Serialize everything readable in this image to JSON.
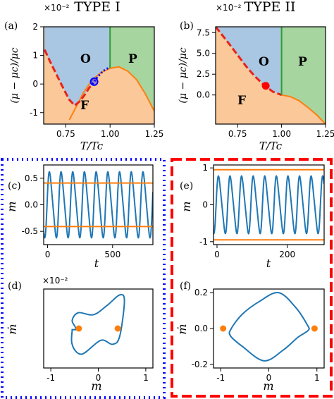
{
  "titles": {
    "left": "TYPE I",
    "right": "TYPE II"
  },
  "panel_labels": {
    "a": "(a)",
    "b": "(b)",
    "c": "(c)",
    "d": "(d)",
    "e": "(e)",
    "f": "(f)"
  },
  "multipliers": {
    "a": "×10⁻²",
    "b": "×10⁻²",
    "d": "×10⁻²"
  },
  "region_labels": {
    "O": "O",
    "P": "P",
    "F": "F"
  },
  "axis_labels": {
    "phase_y": "(μ − μc)/μc",
    "phase_x": "T/Tc",
    "time_x": "t",
    "time_y": "m",
    "phase_space_x": "m",
    "phase_space_y": "ṁ"
  },
  "colors": {
    "O_region": "#a9c6e2",
    "P_region": "#a6d5a0",
    "F_region": "#fbc89a",
    "trajectory": "#1f77b4",
    "fixed": "#ff7f0e",
    "boundary_P": "#2ca02c",
    "typeI": "#0000ff",
    "typeII": "#ff0000"
  },
  "chart_data": [
    {
      "id": "a",
      "type": "line",
      "xlim": [
        0.625,
        1.25
      ],
      "ylim": [
        -0.014,
        0.02
      ],
      "xticks": [
        "0.75",
        "1.00",
        "1.25"
      ],
      "yticks": [
        "-1",
        "0",
        "1",
        "2"
      ],
      "ytick_values": [
        -0.01,
        0,
        0.01,
        0.02
      ],
      "xtick_values": [
        0.75,
        1.0,
        1.25
      ],
      "boundary_OF": {
        "x": [
          0.63,
          0.66,
          0.7,
          0.74,
          0.77,
          0.8,
          0.83,
          0.86,
          0.88,
          0.9,
          0.93,
          0.96,
          1.0
        ],
        "y": [
          0.012,
          0.008,
          0.003,
          -0.002,
          -0.0055,
          -0.0075,
          -0.006,
          -0.0035,
          -0.0015,
          0.0,
          0.0025,
          0.0045,
          0.006
        ]
      },
      "boundary_OP_x": 1.0,
      "boundary_F": {
        "x": [
          0.77,
          0.8,
          0.85,
          0.9,
          0.95,
          1.0,
          1.05,
          1.1,
          1.15,
          1.2,
          1.25
        ],
        "y": [
          -0.0125,
          -0.009,
          -0.003,
          0.0015,
          0.004,
          0.0055,
          0.006,
          0.0045,
          0.0015,
          -0.0035,
          -0.0095
        ]
      },
      "marker": {
        "x": 0.91,
        "y": 0.0008
      }
    },
    {
      "id": "b",
      "type": "line",
      "xlim": [
        0.625,
        1.25
      ],
      "ylim": [
        -0.035,
        0.082
      ],
      "xticks": [
        "0.75",
        "1.00",
        "1.25"
      ],
      "yticks": [
        "0.0",
        "2.5",
        "5.0",
        "7.5"
      ],
      "ytick_values": [
        0,
        0.025,
        0.05,
        0.075
      ],
      "xtick_values": [
        0.75,
        1.0,
        1.25
      ],
      "boundary_OF": {
        "x": [
          0.625,
          0.7,
          0.75,
          0.8,
          0.85,
          0.9,
          0.95,
          1.0
        ],
        "y": [
          0.082,
          0.062,
          0.048,
          0.034,
          0.022,
          0.012,
          0.004,
          0.0
        ]
      },
      "boundary_OP_x": 1.0,
      "boundary_F": {
        "x": [
          1.0,
          1.05,
          1.1,
          1.15,
          1.2,
          1.25
        ],
        "y": [
          0.0,
          -0.002,
          -0.007,
          -0.015,
          -0.024,
          -0.035
        ]
      },
      "marker": {
        "x": 0.91,
        "y": 0.011
      }
    },
    {
      "id": "c",
      "type": "line",
      "xlim": [
        -30,
        810
      ],
      "ylim": [
        -0.75,
        0.75
      ],
      "xticks": [
        "0",
        "500"
      ],
      "xtick_values": [
        0,
        500
      ],
      "yticks": [
        "-0.5",
        "0.0",
        "0.5"
      ],
      "ytick_values": [
        -0.5,
        0,
        0.5
      ],
      "fixed_levels": [
        0.41,
        -0.41
      ],
      "oscillation": {
        "amplitude": 0.62,
        "period": 90,
        "phase": 0.3
      }
    },
    {
      "id": "d",
      "type": "scatter",
      "xlim": [
        -1.15,
        1.15
      ],
      "ylim": [
        -0.1,
        0.1
      ],
      "xticks": [
        "-1",
        "0",
        "1"
      ],
      "xtick_values": [
        -1,
        0,
        1
      ],
      "yticks": [],
      "ytick_values": [],
      "fixed_points": {
        "x": [
          -0.41,
          0.41
        ],
        "y": [
          0,
          0
        ]
      }
    },
    {
      "id": "e",
      "type": "line",
      "xlim": [
        -10,
        305
      ],
      "ylim": [
        -1.08,
        1.08
      ],
      "xticks": [
        "0",
        "200"
      ],
      "xtick_values": [
        0,
        200
      ],
      "yticks": [
        "-1",
        "0",
        "1"
      ],
      "ytick_values": [
        -1,
        0,
        1
      ],
      "fixed_levels": [
        0.95,
        -0.95
      ],
      "oscillation": {
        "amplitude": 0.78,
        "period": 33,
        "phase": 0.5
      }
    },
    {
      "id": "f",
      "type": "scatter",
      "xlim": [
        -1.15,
        1.15
      ],
      "ylim": [
        -0.22,
        0.22
      ],
      "xticks": [
        "-1",
        "0",
        "1"
      ],
      "xtick_values": [
        -1,
        0,
        1
      ],
      "yticks": [
        "-0.2",
        "0.0",
        "0.2"
      ],
      "ytick_values": [
        -0.2,
        0,
        0.2
      ],
      "fixed_points": {
        "x": [
          -0.95,
          0.95
        ],
        "y": [
          0,
          0
        ]
      }
    }
  ]
}
